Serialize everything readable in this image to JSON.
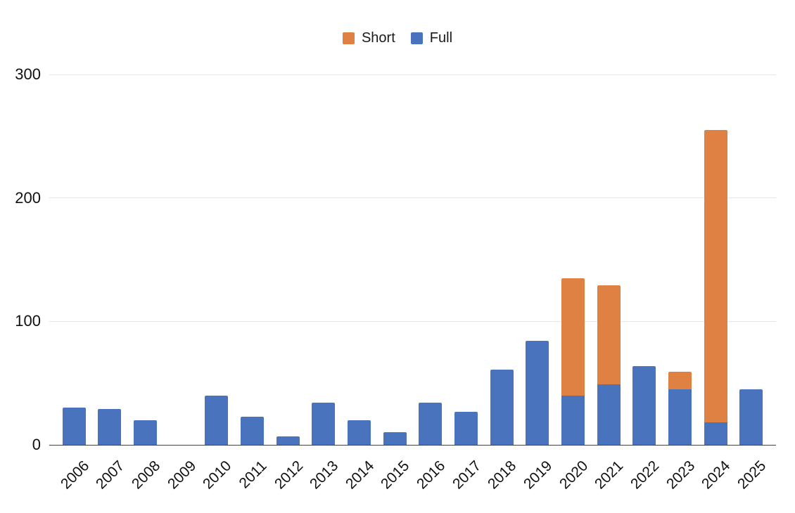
{
  "chart_data": {
    "type": "bar",
    "stacked": true,
    "title": "",
    "xlabel": "",
    "ylabel": "",
    "categories": [
      "2006",
      "2007",
      "2008",
      "2009",
      "2010",
      "2011",
      "2012",
      "2013",
      "2014",
      "2015",
      "2016",
      "2017",
      "2018",
      "2019",
      "2020",
      "2021",
      "2022",
      "2023",
      "2024",
      "2025"
    ],
    "series": [
      {
        "name": "Full",
        "color": "#4A73BE",
        "values": [
          30,
          29,
          20,
          0,
          40,
          23,
          7,
          34,
          20,
          10,
          34,
          27,
          61,
          84,
          40,
          49,
          64,
          45,
          18,
          45
        ]
      },
      {
        "name": "Short",
        "color": "#DE8142",
        "values": [
          0,
          0,
          0,
          0,
          0,
          0,
          0,
          0,
          0,
          0,
          0,
          0,
          0,
          0,
          95,
          80,
          0,
          14,
          237,
          0
        ]
      }
    ],
    "legend": [
      {
        "label": "Short",
        "color": "#DE8142"
      },
      {
        "label": "Full",
        "color": "#4A73BE"
      }
    ],
    "legend_position": "top",
    "yticks": [
      0,
      100,
      200,
      300
    ],
    "ylim": [
      0,
      300
    ],
    "grid": true,
    "style": {
      "gridline_color": "#E6E6E6",
      "axis_line_color": "#424242",
      "label_color": "#111111",
      "background": "#FFFFFF"
    }
  }
}
